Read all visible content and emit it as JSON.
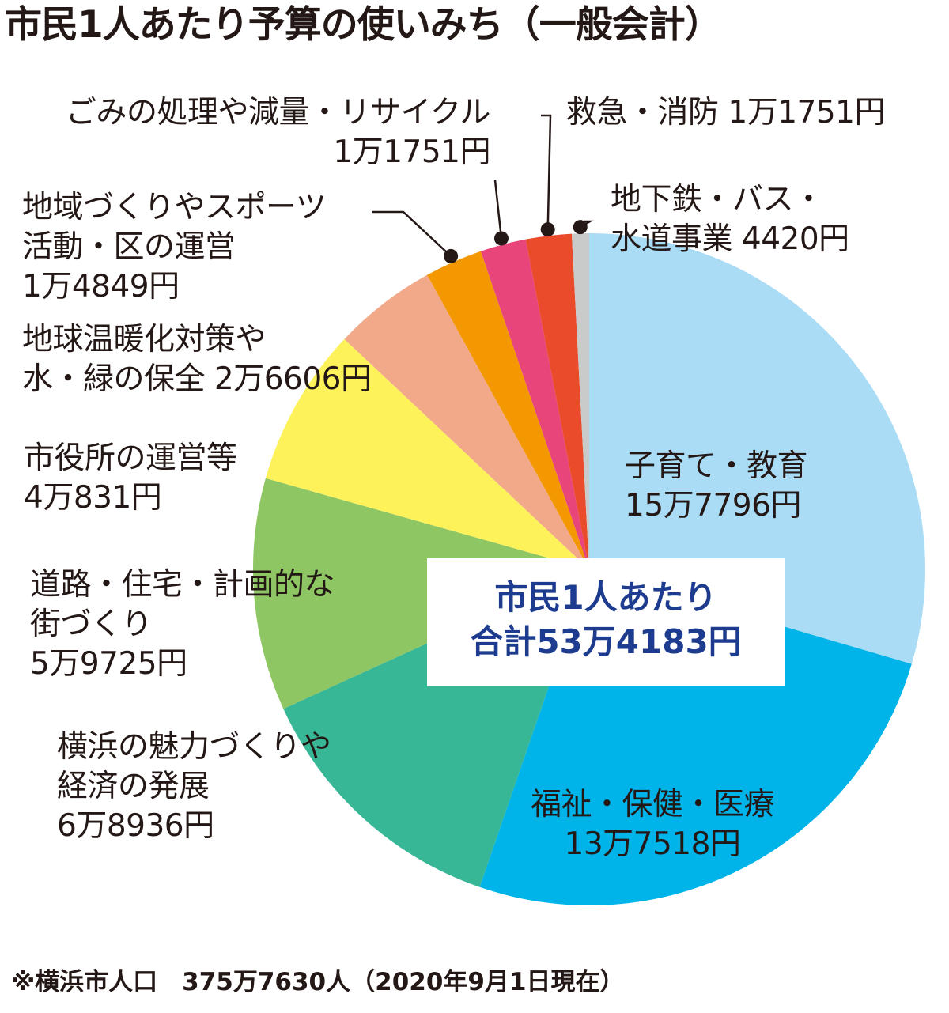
{
  "title": "市民1人あたり予算の使いみち（一般会計）",
  "center": {
    "line1": "市民1人あたり",
    "line2": "合計53万4183円"
  },
  "footnote": "※横浜市人口　375万7630人（2020年9月1日現在）",
  "chart_data": {
    "type": "pie",
    "title": "市民1人あたり予算の使いみち（一般会計）",
    "unit": "円",
    "total": 534183,
    "slices": [
      {
        "name": "子育て・教育",
        "value": 157796,
        "label": [
          "子育て・教育",
          "15万7796円"
        ],
        "color": "#aadcf6"
      },
      {
        "name": "福祉・保健・医療",
        "value": 137518,
        "label": [
          "福祉・保健・医療",
          "13万7518円"
        ],
        "color": "#00b4e9"
      },
      {
        "name": "横浜の魅力づくりや経済の発展",
        "value": 68936,
        "label": [
          "横浜の魅力づくりや",
          "経済の発展",
          "6万8936円"
        ],
        "color": "#38b796"
      },
      {
        "name": "道路・住宅・計画的な街づくり",
        "value": 59725,
        "label": [
          "道路・住宅・計画的な",
          "街づくり",
          "5万9725円"
        ],
        "color": "#8dc663"
      },
      {
        "name": "市役所の運営等",
        "value": 40831,
        "label": [
          "市役所の運営等",
          "4万831円"
        ],
        "color": "#fdf25a"
      },
      {
        "name": "地球温暖化対策や水・緑の保全",
        "value": 26606,
        "label": [
          "地球温暖化対策や",
          "水・緑の保全 2万6606円"
        ],
        "color": "#f2a98a"
      },
      {
        "name": "地域づくりやスポーツ活動・区の運営",
        "value": 14849,
        "label": [
          "地域づくりやスポーツ",
          "活動・区の運営",
          "1万4849円"
        ],
        "color": "#f39800"
      },
      {
        "name": "ごみの処理や減量・リサイクル",
        "value": 11751,
        "label": [
          "ごみの処理や減量・リサイクル",
          "1万1751円"
        ],
        "color": "#e8457a"
      },
      {
        "name": "救急・消防",
        "value": 11751,
        "label": [
          "救急・消防 1万1751円"
        ],
        "color": "#e94b2b"
      },
      {
        "name": "地下鉄・バス・水道事業",
        "value": 4420,
        "label": [
          "地下鉄・バス・",
          "水道事業 4420円"
        ],
        "color": "#c9caca"
      }
    ]
  }
}
